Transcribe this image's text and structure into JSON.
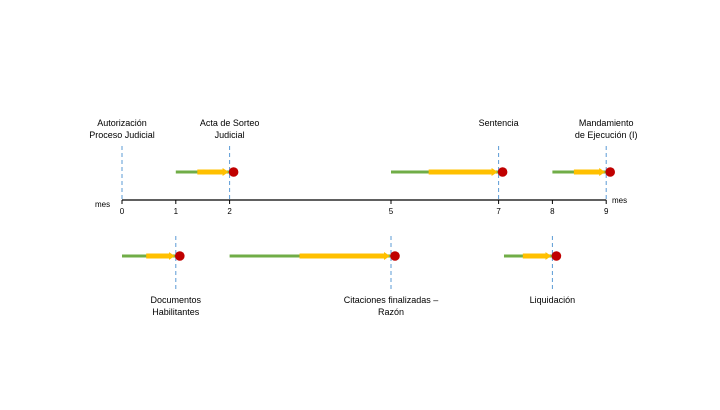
{
  "timeline": {
    "unit_label": "mes",
    "ticks": [
      {
        "month": 0,
        "label": "0"
      },
      {
        "month": 1,
        "label": "1"
      },
      {
        "month": 2,
        "label": "2"
      },
      {
        "month": 5,
        "label": "5"
      },
      {
        "month": 7,
        "label": "7"
      },
      {
        "month": 8,
        "label": "8"
      },
      {
        "month": 9,
        "label": "9"
      }
    ],
    "events_above": [
      {
        "id": "autorizacion",
        "lines": [
          "Autorización",
          "Proceso Judicial"
        ],
        "month": 0,
        "has_arrow": false
      },
      {
        "id": "acta-sorteo",
        "lines": [
          "Acta de Sorteo",
          "Judicial"
        ],
        "month": 2,
        "has_arrow": true,
        "start_month": 1,
        "orange_month": 1.4,
        "end_month": 2
      },
      {
        "id": "sentencia",
        "lines": [
          "Sentencia"
        ],
        "month": 7,
        "has_arrow": true,
        "start_month": 5,
        "orange_month": 5.7,
        "end_month": 7
      },
      {
        "id": "mandamiento",
        "lines": [
          "Mandamiento",
          "de Ejecución (I)"
        ],
        "month": 9,
        "has_arrow": true,
        "start_month": 8,
        "orange_month": 8.4,
        "end_month": 9
      }
    ],
    "events_below": [
      {
        "id": "documentos",
        "lines": [
          "Documentos",
          "Habilitantes"
        ],
        "month": 1,
        "start_month": 0,
        "orange_month": 0.45,
        "end_month": 1
      },
      {
        "id": "citaciones",
        "lines": [
          "Citaciones finalizadas –",
          "Razón"
        ],
        "month": 5,
        "start_month": 2,
        "orange_month": 3.3,
        "end_month": 5
      },
      {
        "id": "liquidacion",
        "lines": [
          "Liquidación"
        ],
        "month": 8,
        "start_month": 7.1,
        "orange_month": 7.45,
        "end_month": 8
      }
    ],
    "colors": {
      "axis": "#000000",
      "dashed": "#5b9bd5",
      "green": "#70ad47",
      "orange": "#ffc000",
      "dot": "#c00000"
    }
  }
}
